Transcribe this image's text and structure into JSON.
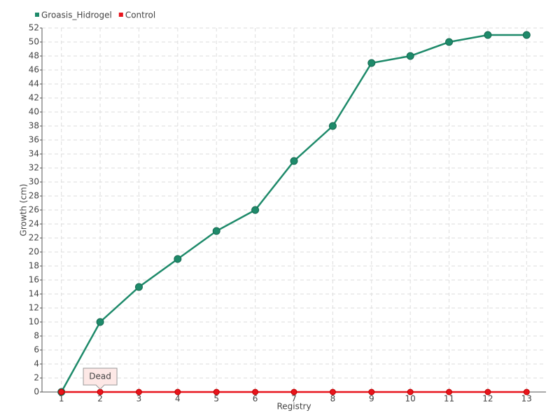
{
  "chart_data": {
    "type": "line",
    "categories": [
      "1",
      "2",
      "3",
      "4",
      "5",
      "6",
      "7",
      "8",
      "9",
      "10",
      "11",
      "12",
      "13"
    ],
    "series": [
      {
        "name": "Groasis_Hidrogel",
        "color": "#1e8a6a",
        "values": [
          0,
          10,
          15,
          19,
          23,
          26,
          33,
          38,
          47,
          48,
          50,
          51,
          51
        ]
      },
      {
        "name": "Control",
        "color": "#e8141c",
        "values": [
          0,
          0,
          0,
          0,
          0,
          0,
          0,
          0,
          0,
          0,
          0,
          0,
          0
        ]
      }
    ],
    "x_label": "Registry",
    "y_label": "Growth (cm)",
    "ylim": [
      0,
      52
    ],
    "yticks": [
      0,
      2,
      4,
      6,
      8,
      10,
      12,
      14,
      16,
      18,
      20,
      22,
      24,
      26,
      28,
      30,
      32,
      34,
      36,
      38,
      40,
      42,
      44,
      46,
      48,
      50,
      52
    ],
    "grid": true,
    "annotation": "Dead"
  }
}
